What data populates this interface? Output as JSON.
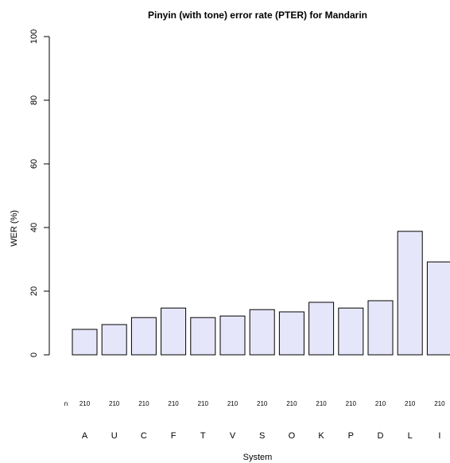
{
  "chart_data": {
    "type": "bar",
    "title": "Pinyin (with tone) error rate (PTER) for Mandarin",
    "xlabel": "System",
    "ylabel": "WER (%)",
    "ylim": [
      0,
      100
    ],
    "yticks": [
      0,
      20,
      40,
      60,
      80,
      100
    ],
    "grid": false,
    "bar_color": "#e6e6fa",
    "categories": [
      "A",
      "U",
      "C",
      "F",
      "T",
      "V",
      "S",
      "O",
      "K",
      "P",
      "D",
      "L",
      "I"
    ],
    "values": [
      8.0,
      9.5,
      11.7,
      14.7,
      11.7,
      12.2,
      14.2,
      13.5,
      16.5,
      14.7,
      17.0,
      38.8,
      29.2
    ],
    "n_label": "n",
    "counts": [
      "210",
      "210",
      "210",
      "210",
      "210",
      "210",
      "210",
      "210",
      "210",
      "210",
      "210",
      "210",
      "210"
    ]
  }
}
